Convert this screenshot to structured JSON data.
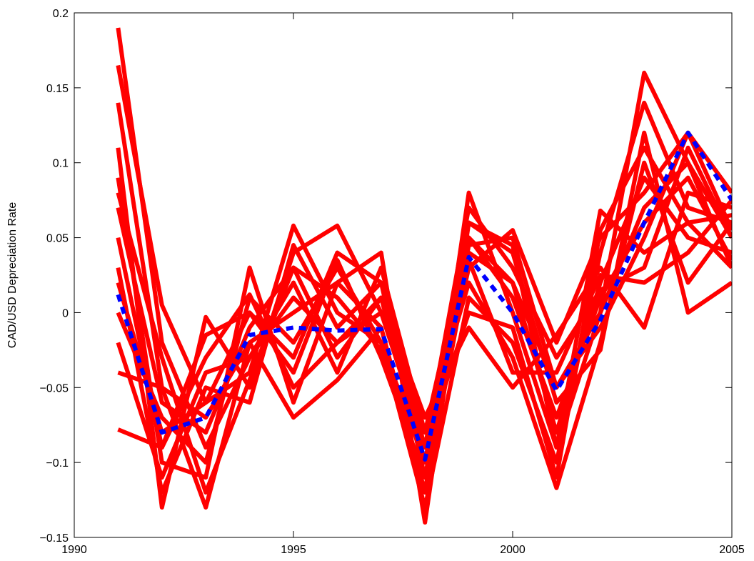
{
  "chart_data": {
    "type": "line",
    "ylabel": "CAD/USD Depreciation Rate",
    "x": [
      1991,
      1992,
      1993,
      1994,
      1995,
      1996,
      1997,
      1998,
      1999,
      2000,
      2001,
      2002,
      2003,
      2004,
      2005
    ],
    "xlim": [
      1990,
      2005
    ],
    "xticks": [
      1990,
      1995,
      2000,
      2005
    ],
    "ylim": [
      -0.15,
      0.2
    ],
    "yticks": [
      {
        "value": -0.15,
        "label": "−0.15"
      },
      {
        "value": -0.1,
        "label": "−0.1"
      },
      {
        "value": -0.05,
        "label": "−0.05"
      },
      0,
      0.05,
      0.1,
      0.15,
      0.2
    ],
    "series": [
      {
        "color": "#ff0000",
        "values": [
          0.19,
          -0.02,
          -0.09,
          -0.03,
          0.01,
          -0.02,
          0.0,
          -0.09,
          0.05,
          0.02,
          -0.05,
          0.0,
          0.16,
          0.1,
          0.05
        ]
      },
      {
        "color": "#ff0000",
        "values": [
          0.165,
          0.005,
          -0.06,
          -0.04,
          0.058,
          0.0,
          -0.02,
          -0.1,
          0.03,
          0.055,
          -0.02,
          0.05,
          0.08,
          0.12,
          0.08
        ]
      },
      {
        "color": "#ff0000",
        "values": [
          0.14,
          -0.05,
          -0.13,
          -0.02,
          -0.07,
          -0.045,
          -0.01,
          -0.12,
          0.08,
          0.0,
          -0.09,
          0.068,
          0.04,
          0.06,
          0.03
        ]
      },
      {
        "color": "#ff0000",
        "values": [
          0.11,
          -0.13,
          -0.003,
          -0.05,
          0.04,
          0.058,
          0.0,
          -0.08,
          0.02,
          -0.03,
          -0.117,
          -0.02,
          0.1,
          0.02,
          0.06
        ]
      },
      {
        "color": "#ff0000",
        "values": [
          0.09,
          -0.1,
          -0.11,
          0.03,
          -0.06,
          0.02,
          0.04,
          -0.14,
          0.06,
          0.04,
          -0.06,
          -0.025,
          0.12,
          0.0,
          0.02
        ]
      },
      {
        "color": "#ff0000",
        "values": [
          0.07,
          -0.06,
          -0.08,
          -0.01,
          0.03,
          -0.03,
          0.01,
          -0.07,
          -0.01,
          -0.05,
          -0.015,
          0.03,
          -0.01,
          0.08,
          0.07
        ]
      },
      {
        "color": "#ff0000",
        "values": [
          0.05,
          -0.09,
          -0.015,
          0.0,
          -0.04,
          0.035,
          -0.03,
          -0.11,
          0.04,
          0.02,
          -0.08,
          0.02,
          0.09,
          0.05,
          0.04
        ]
      },
      {
        "color": "#ff0000",
        "values": [
          0.03,
          -0.12,
          -0.05,
          -0.06,
          0.045,
          -0.01,
          0.02,
          -0.09,
          0.07,
          0.03,
          -0.03,
          0.015,
          0.03,
          0.11,
          0.05
        ]
      },
      {
        "color": "#ff0000",
        "values": [
          0.0,
          -0.07,
          -0.1,
          0.01,
          -0.02,
          0.03,
          -0.02,
          -0.13,
          0.01,
          -0.02,
          -0.1,
          0.04,
          0.14,
          0.07,
          0.06
        ]
      },
      {
        "color": "#ff0000",
        "values": [
          -0.02,
          -0.11,
          -0.04,
          -0.03,
          0.02,
          -0.04,
          0.03,
          -0.08,
          0.05,
          0.01,
          -0.07,
          0.01,
          0.06,
          0.09,
          0.035
        ]
      },
      {
        "color": "#ff0000",
        "values": [
          -0.04,
          -0.05,
          -0.07,
          -0.02,
          0.0,
          0.02,
          -0.01,
          -0.12,
          0.035,
          -0.04,
          -0.04,
          0.025,
          0.02,
          0.04,
          0.075
        ]
      },
      {
        "color": "#ff0000",
        "values": [
          -0.078,
          -0.09,
          -0.03,
          0.012,
          -0.05,
          -0.02,
          0.01,
          -0.1,
          0.06,
          0.045,
          -0.09,
          0.0,
          0.07,
          0.1,
          0.03
        ]
      },
      {
        "color": "#ff0000",
        "values": [
          0.08,
          -0.03,
          -0.12,
          -0.045,
          0.03,
          0.01,
          -0.025,
          -0.09,
          0.0,
          -0.01,
          -0.11,
          0.055,
          0.11,
          0.06,
          0.065
        ]
      },
      {
        "color": "#ff0000",
        "values": [
          0.02,
          -0.08,
          -0.06,
          0.0,
          -0.03,
          0.04,
          0.02,
          -0.11,
          0.045,
          0.05,
          -0.05,
          -0.01,
          0.05,
          0.12,
          0.055
        ]
      },
      {
        "color": "#0000ff",
        "dashed": true,
        "values": [
          0.012,
          -0.08,
          -0.07,
          -0.015,
          -0.01,
          -0.012,
          -0.011,
          -0.098,
          0.037,
          0.0,
          -0.052,
          -0.005,
          0.06,
          0.12,
          0.075
        ]
      }
    ]
  }
}
